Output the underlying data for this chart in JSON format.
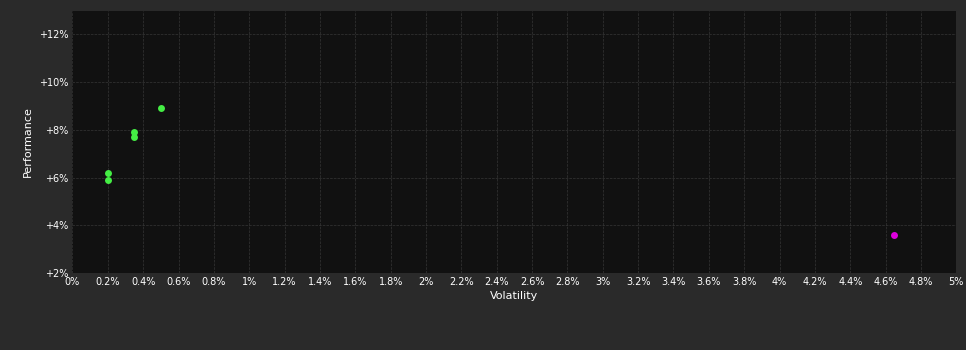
{
  "background_color": "#2a2a2a",
  "plot_bg_color": "#111111",
  "grid_color": "#3a3a3a",
  "text_color": "#ffffff",
  "xlabel": "Volatility",
  "ylabel": "Performance",
  "xlim": [
    0.0,
    0.05
  ],
  "ylim": [
    0.02,
    0.13
  ],
  "xtick_values": [
    0.0,
    0.002,
    0.004,
    0.006,
    0.008,
    0.01,
    0.012,
    0.014,
    0.016,
    0.018,
    0.02,
    0.022,
    0.024,
    0.026,
    0.028,
    0.03,
    0.032,
    0.034,
    0.036,
    0.038,
    0.04,
    0.042,
    0.044,
    0.046,
    0.048,
    0.05
  ],
  "xtick_labels": [
    "0%",
    "0.2%",
    "0.4%",
    "0.6%",
    "0.8%",
    "1%",
    "1.2%",
    "1.4%",
    "1.6%",
    "1.8%",
    "2%",
    "2.2%",
    "2.4%",
    "2.6%",
    "2.8%",
    "3%",
    "3.2%",
    "3.4%",
    "3.6%",
    "3.8%",
    "4%",
    "4.2%",
    "4.4%",
    "4.6%",
    "4.8%",
    "5%"
  ],
  "ytick_values": [
    0.02,
    0.04,
    0.06,
    0.08,
    0.1,
    0.12
  ],
  "ytick_labels": [
    "+2%",
    "+4%",
    "+6%",
    "+8%",
    "+10%",
    "+12%"
  ],
  "green_points": [
    [
      0.002,
      0.062
    ],
    [
      0.002,
      0.059
    ],
    [
      0.0035,
      0.079
    ],
    [
      0.0035,
      0.077
    ],
    [
      0.005,
      0.089
    ]
  ],
  "magenta_points": [
    [
      0.0465,
      0.036
    ]
  ],
  "green_color": "#44ee44",
  "magenta_color": "#dd00dd",
  "marker_size": 5,
  "font_size_ticks": 7,
  "font_size_label": 8
}
